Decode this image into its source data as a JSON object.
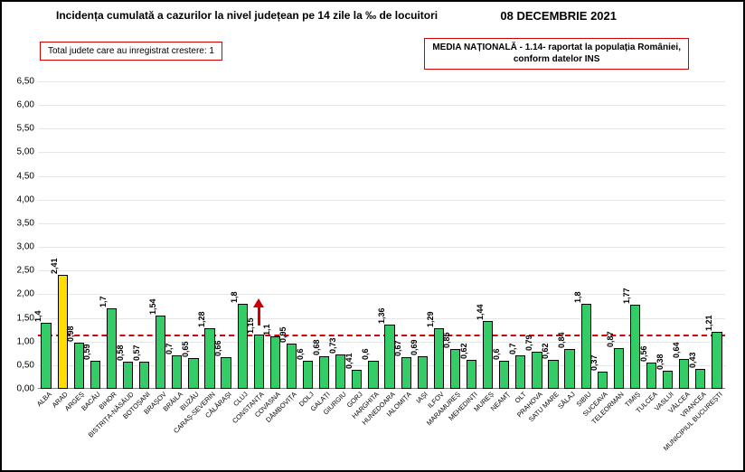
{
  "header": {
    "title": "Incidența cumulată a cazurilor la nivel județean pe 14 zile la ‰ de locuitori",
    "date": "08 DECEMBRIE 2021"
  },
  "legend": {
    "left": "Total judete care au inregistrat crestere: 1",
    "right_line1": "MEDIA NAȚIONALĂ - 1.14-  raportat la populația României,",
    "right_line2": "conform datelor INS"
  },
  "chart": {
    "type": "bar",
    "ylim": [
      0,
      6.5
    ],
    "ytick_step": 0.5,
    "ytick_format": "comma",
    "grid_color": "#e6e6e6",
    "background_color": "#ffffff",
    "bar_color": "#33cc66",
    "highlight_color": "#ffdd00",
    "bar_border_color": "#000000",
    "refline_value": 1.14,
    "refline_color": "#d00000",
    "arrow_index": 13,
    "label_fontsize": 9,
    "tick_fontsize": 7.5,
    "categories": [
      "ALBA",
      "ARAD",
      "ARGEȘ",
      "BACĂU",
      "BIHOR",
      "BISTRIȚA-NĂSĂUD",
      "BOTOȘANI",
      "BRAȘOV",
      "BRĂILA",
      "BUZĂU",
      "CARAȘ-SEVERIN",
      "CĂLĂRAȘI",
      "CLUJ",
      "CONSTANȚA",
      "COVASNA",
      "DÂMBOVIȚA",
      "DOLJ",
      "GALAȚI",
      "GIURGIU",
      "GORJ",
      "HARGHITA",
      "HUNEDOARA",
      "IALOMIȚA",
      "IAȘI",
      "ILFOV",
      "MARAMUREȘ",
      "MEHEDINȚI",
      "MUREȘ",
      "NEAMȚ",
      "OLT",
      "PRAHOVA",
      "SATU MARE",
      "SĂLAJ",
      "SIBIU",
      "SUCEAVA",
      "TELEORMAN",
      "TIMIȘ",
      "TULCEA",
      "VASLUI",
      "VÂLCEA",
      "VRANCEA",
      "MUNICIPIUL BUCUREȘTI"
    ],
    "values": [
      1.4,
      2.41,
      0.98,
      0.59,
      1.7,
      0.58,
      0.57,
      1.54,
      0.7,
      0.65,
      1.28,
      0.66,
      1.8,
      1.15,
      1.1,
      0.95,
      0.6,
      0.68,
      0.73,
      0.41,
      0.6,
      1.36,
      0.67,
      0.69,
      1.29,
      0.85,
      0.62,
      1.44,
      0.6,
      0.7,
      0.79,
      0.62,
      0.84,
      1.8,
      0.37,
      0.87,
      1.77,
      0.56,
      0.38,
      0.64,
      0.43,
      1.21
    ],
    "highlight_indices": [
      1
    ]
  }
}
